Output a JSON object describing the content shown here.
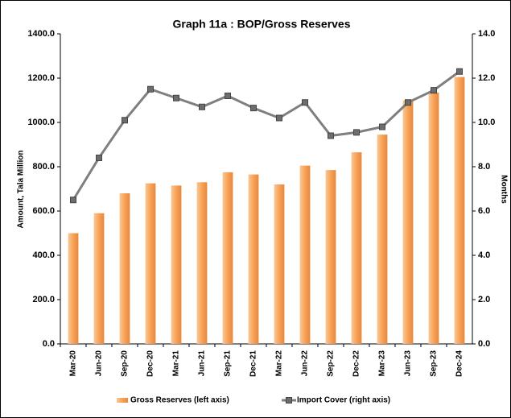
{
  "chart_data": {
    "type": "bar",
    "title": "Graph 11a : BOP/Gross Reserves",
    "categories": [
      "Mar-20",
      "Jun-20",
      "Sep-20",
      "Dec-20",
      "Mar-21",
      "Jun-21",
      "Sep-21",
      "Dec-21",
      "Mar-22",
      "Jun-22",
      "Sep-22",
      "Dec-22",
      "Mar-23",
      "Jun-23",
      "Sep-23",
      "Dec-24"
    ],
    "series": [
      {
        "name": "Gross Reserves (left axis)",
        "type": "bar",
        "color": "#f5a258",
        "values": [
          500,
          590,
          680,
          725,
          715,
          730,
          775,
          765,
          720,
          805,
          785,
          865,
          945,
          1100,
          1135,
          1205
        ]
      },
      {
        "name": "Import Cover (right axis)",
        "type": "line",
        "axis": "y2",
        "color": "#7f7f7f",
        "values": [
          6.5,
          8.4,
          10.1,
          11.5,
          11.1,
          10.7,
          11.2,
          10.65,
          10.2,
          10.9,
          9.4,
          9.55,
          9.8,
          10.9,
          11.45,
          12.3
        ]
      }
    ],
    "ylabel": "Amount, Tala Million",
    "y2label": "Months",
    "ylim": [
      0,
      1400
    ],
    "yticks": [
      {
        "value": 0,
        "label": "0.0"
      },
      {
        "value": 200,
        "label": "200.0"
      },
      {
        "value": 400,
        "label": "400.0"
      },
      {
        "value": 600,
        "label": "600.0"
      },
      {
        "value": 800,
        "label": "800.0"
      },
      {
        "value": 1000,
        "label": "1000.0"
      },
      {
        "value": 1200,
        "label": "1200.0"
      },
      {
        "value": 1400,
        "label": "1400.0"
      }
    ],
    "y2lim": [
      0,
      14
    ],
    "y2ticks": [
      {
        "value": 0,
        "label": "0.0"
      },
      {
        "value": 2,
        "label": "2.0"
      },
      {
        "value": 4,
        "label": "4.0"
      },
      {
        "value": 6,
        "label": "6.0"
      },
      {
        "value": 8,
        "label": "8.0"
      },
      {
        "value": 10,
        "label": "10.0"
      },
      {
        "value": 12,
        "label": "12.0"
      },
      {
        "value": 14,
        "label": "14.0"
      }
    ],
    "grid": false,
    "legend": "bottom"
  }
}
